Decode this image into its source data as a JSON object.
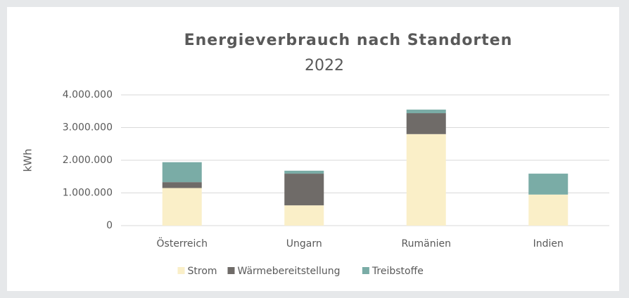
{
  "chart_data": {
    "type": "stacked_bar",
    "title": "Energieverbrauch nach Standorten",
    "subtitle": "2022",
    "y_label": "kWh",
    "categories": [
      "Österreich",
      "Ungarn",
      "Rumänien",
      "Indien"
    ],
    "series": [
      {
        "name": "Strom",
        "color": "#faefc8",
        "values": [
          1150000,
          620000,
          2800000,
          950000
        ]
      },
      {
        "name": "Wärmebereitstellung",
        "color": "#6f6b68",
        "values": [
          180000,
          970000,
          640000,
          0
        ]
      },
      {
        "name": "Treibstoffe",
        "color": "#7aaca6",
        "values": [
          610000,
          90000,
          110000,
          640000
        ]
      }
    ],
    "ylim": [
      0,
      4000000
    ],
    "yticks": [
      0,
      {
        "value": 1000000,
        "label": "1.000.000"
      },
      {
        "value": 2000000,
        "label": "2.000.000"
      },
      {
        "value": 3000000,
        "label": "3.000.000"
      },
      {
        "value": 4000000,
        "label": "4.000.000"
      }
    ],
    "grid": true,
    "legend": "bottom"
  }
}
